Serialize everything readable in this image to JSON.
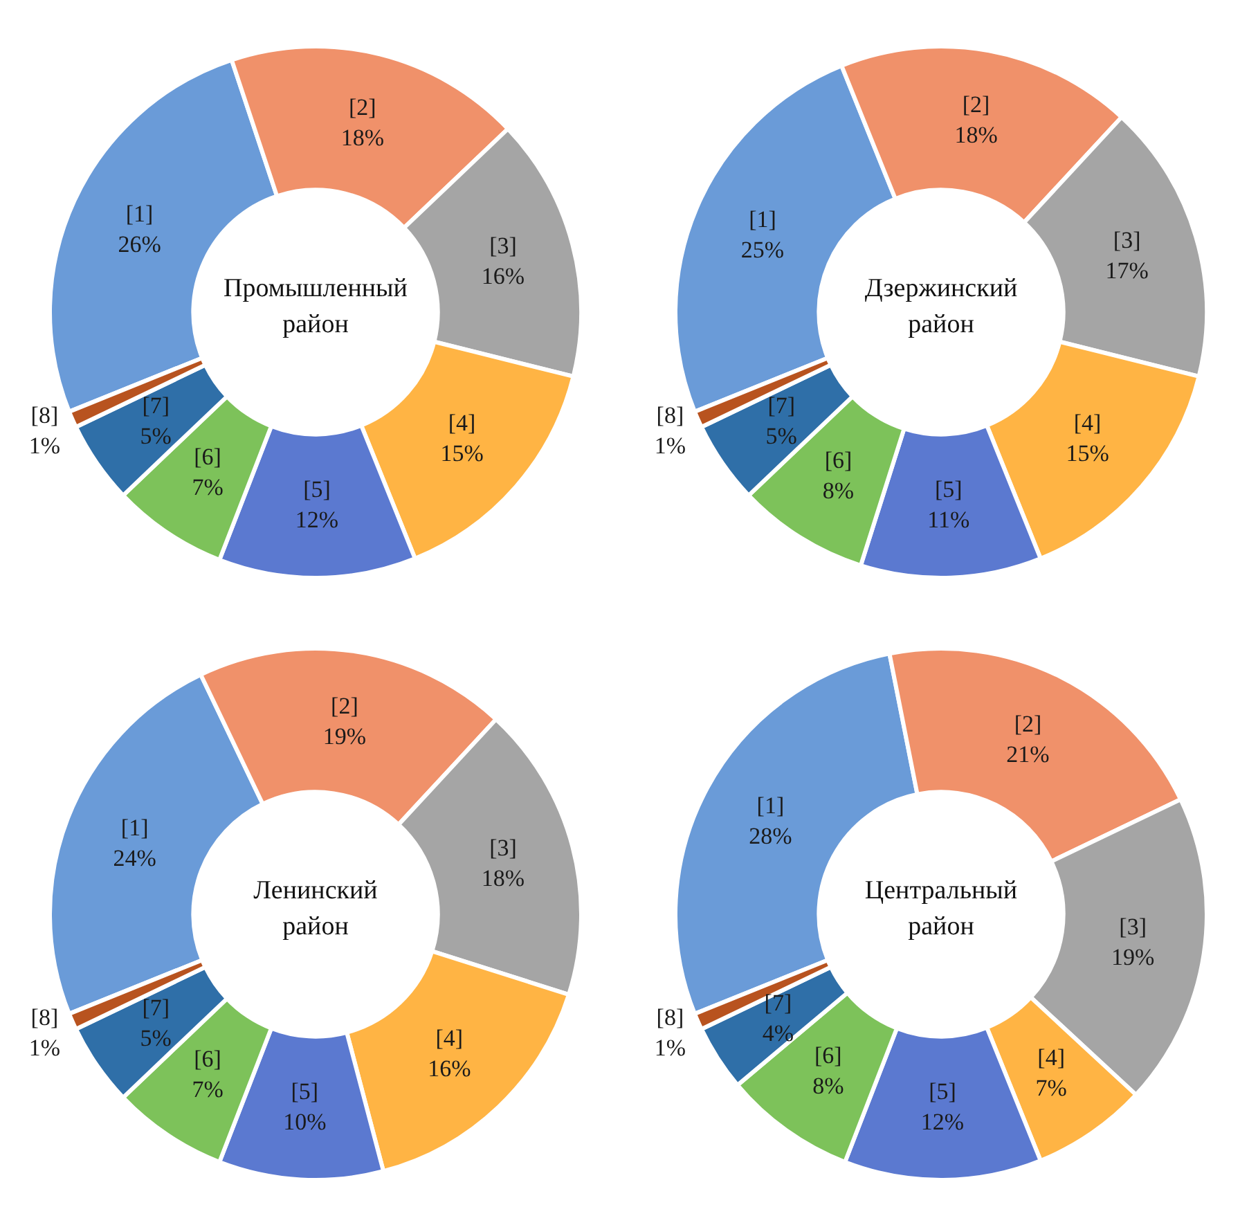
{
  "chart_data": [
    {
      "type": "donut",
      "title": "Промышленный район",
      "categories": [
        "[1]",
        "[2]",
        "[3]",
        "[4]",
        "[5]",
        "[6]",
        "[7]",
        "[8]"
      ],
      "values": [
        26,
        18,
        16,
        15,
        12,
        7,
        5,
        1
      ],
      "value_labels": [
        "26%",
        "18%",
        "16%",
        "15%",
        "12%",
        "7%",
        "5%",
        "1%"
      ],
      "colors": [
        "#6a9bd8",
        "#f0916a",
        "#a5a5a5",
        "#ffb444",
        "#5b79d0",
        "#7dc25a",
        "#2f6fa8",
        "#b8531f"
      ],
      "legend": false
    },
    {
      "type": "donut",
      "title": "Дзержинский район",
      "categories": [
        "[1]",
        "[2]",
        "[3]",
        "[4]",
        "[5]",
        "[6]",
        "[7]",
        "[8]"
      ],
      "values": [
        25,
        18,
        17,
        15,
        11,
        8,
        5,
        1
      ],
      "value_labels": [
        "25%",
        "18%",
        "17%",
        "15%",
        "11%",
        "8%",
        "5%",
        "1%"
      ],
      "colors": [
        "#6a9bd8",
        "#f0916a",
        "#a5a5a5",
        "#ffb444",
        "#5b79d0",
        "#7dc25a",
        "#2f6fa8",
        "#b8531f"
      ],
      "legend": false
    },
    {
      "type": "donut",
      "title": "Ленинский район",
      "categories": [
        "[1]",
        "[2]",
        "[3]",
        "[4]",
        "[5]",
        "[6]",
        "[7]",
        "[8]"
      ],
      "values": [
        24,
        19,
        18,
        16,
        10,
        7,
        5,
        1
      ],
      "value_labels": [
        "24%",
        "19%",
        "18%",
        "16%",
        "10%",
        "7%",
        "5%",
        "1%"
      ],
      "colors": [
        "#6a9bd8",
        "#f0916a",
        "#a5a5a5",
        "#ffb444",
        "#5b79d0",
        "#7dc25a",
        "#2f6fa8",
        "#b8531f"
      ],
      "legend": false
    },
    {
      "type": "donut",
      "title": "Центральный район",
      "categories": [
        "[1]",
        "[2]",
        "[3]",
        "[4]",
        "[5]",
        "[6]",
        "[7]",
        "[8]"
      ],
      "values": [
        28,
        21,
        19,
        7,
        12,
        8,
        4,
        1
      ],
      "value_labels": [
        "28%",
        "21%",
        "19%",
        "7%",
        "12%",
        "8%",
        "4%",
        "1%"
      ],
      "colors": [
        "#6a9bd8",
        "#f0916a",
        "#a5a5a5",
        "#ffb444",
        "#5b79d0",
        "#7dc25a",
        "#2f6fa8",
        "#b8531f"
      ],
      "legend": false
    }
  ]
}
